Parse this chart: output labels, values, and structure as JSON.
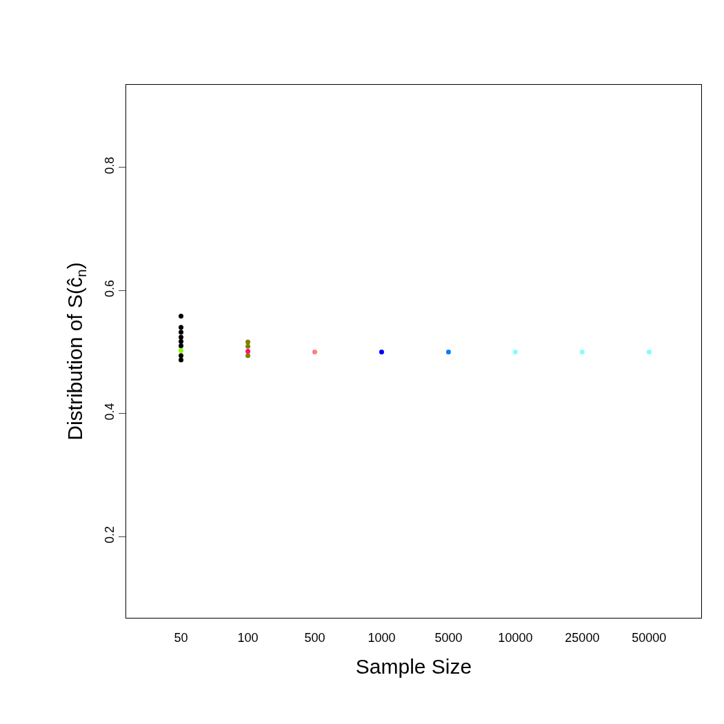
{
  "chart_data": {
    "type": "scatter",
    "xlabel": "Sample Size",
    "ylabel": "Distribution of S(ĉ$_{n}$)",
    "categories": [
      "50",
      "100",
      "500",
      "1000",
      "5000",
      "10000",
      "25000",
      "50000"
    ],
    "ylim": [
      0.068,
      0.934
    ],
    "yticks": [
      0.2,
      0.4,
      0.6,
      0.8
    ],
    "marker": "circle",
    "series": [
      {
        "color": "#808000",
        "x": [
          "100",
          "100",
          "100"
        ],
        "values": [
          0.516,
          0.509,
          0.494
        ]
      },
      {
        "color": "#000000",
        "x": [
          "50",
          "50",
          "50",
          "50",
          "50",
          "50",
          "50",
          "50"
        ],
        "values": [
          0.558,
          0.54,
          0.532,
          0.524,
          0.517,
          0.51,
          0.494,
          0.487
        ]
      },
      {
        "color": "#7fff00",
        "values": [
          0.502,
          null,
          null,
          null,
          null,
          null,
          null,
          null
        ]
      },
      {
        "color": "#ff1070",
        "values": [
          null,
          0.501,
          null,
          null,
          null,
          null,
          null,
          null
        ]
      },
      {
        "color": "#ff7f7f",
        "values": [
          null,
          null,
          0.5,
          null,
          null,
          null,
          null,
          null
        ]
      },
      {
        "color": "#0000ff",
        "values": [
          null,
          null,
          null,
          0.5,
          null,
          null,
          null,
          null
        ]
      },
      {
        "color": "#0080ff",
        "values": [
          null,
          null,
          null,
          null,
          0.5,
          null,
          null,
          null
        ]
      },
      {
        "color": "#80ffff",
        "values": [
          null,
          null,
          null,
          null,
          null,
          0.5,
          0.5,
          0.5
        ]
      }
    ]
  }
}
